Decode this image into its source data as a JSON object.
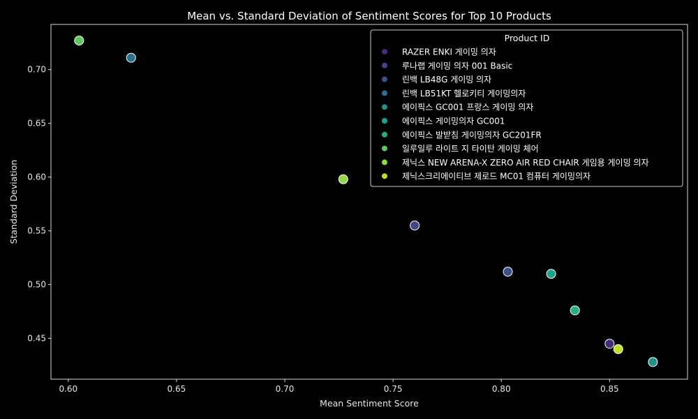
{
  "chart_data": {
    "type": "scatter",
    "title": "Mean vs. Standard Deviation of Sentiment Scores for Top 10 Products",
    "xlabel": "Mean Sentiment Score",
    "ylabel": "Standard Deviation",
    "xlim": [
      0.592,
      0.886
    ],
    "ylim": [
      0.412,
      0.742
    ],
    "xticks": [
      0.6,
      0.65,
      0.7,
      0.75,
      0.8,
      0.85
    ],
    "xtick_labels": [
      "0.60",
      "0.65",
      "0.70",
      "0.75",
      "0.80",
      "0.85"
    ],
    "yticks": [
      0.45,
      0.5,
      0.55,
      0.6,
      0.65,
      0.7
    ],
    "ytick_labels": [
      "0.45",
      "0.50",
      "0.55",
      "0.60",
      "0.65",
      "0.70"
    ],
    "grid": false,
    "legend_title": "Product ID",
    "legend_position": "top-right",
    "series": [
      {
        "name": "RAZER ENKI 게이밍 의자",
        "color": "#472c7a",
        "x": [
          0.85
        ],
        "y": [
          0.445
        ]
      },
      {
        "name": "루나랩 게이밍 의자 001 Basic",
        "color": "#414487",
        "x": [
          0.76
        ],
        "y": [
          0.555
        ]
      },
      {
        "name": "린백 LB48G 게이밍 의자",
        "color": "#3b528b",
        "x": [
          0.803
        ],
        "y": [
          0.512
        ]
      },
      {
        "name": "린백 LB51KT 헬로키티 게이밍의자",
        "color": "#2c728e",
        "x": [
          0.629
        ],
        "y": [
          0.711
        ]
      },
      {
        "name": "에이픽스 GC001 프랑스 게이밍 의자",
        "color": "#21918c",
        "x": [
          0.87
        ],
        "y": [
          0.428
        ]
      },
      {
        "name": "에이픽스 게이밍의자 GC001",
        "color": "#1fa187",
        "x": [
          0.823
        ],
        "y": [
          0.51
        ]
      },
      {
        "name": "에이픽스 발받침 게이밍의자 GC201FR",
        "color": "#28ae80",
        "x": [
          0.834
        ],
        "y": [
          0.476
        ]
      },
      {
        "name": "일루일루 라이트 지 타이탄 게이밍 체어",
        "color": "#5ec962",
        "x": [
          0.605
        ],
        "y": [
          0.727
        ]
      },
      {
        "name": "제닉스 NEW ARENA-X ZERO AIR RED CHAIR 게임용 게이밍 의자",
        "color": "#90d743",
        "x": [
          0.727
        ],
        "y": [
          0.598
        ]
      },
      {
        "name": "제닉스크리에이티브 제로드 MC01 컴퓨터 게이밍의자",
        "color": "#c2df23",
        "x": [
          0.854
        ],
        "y": [
          0.44
        ]
      }
    ]
  }
}
